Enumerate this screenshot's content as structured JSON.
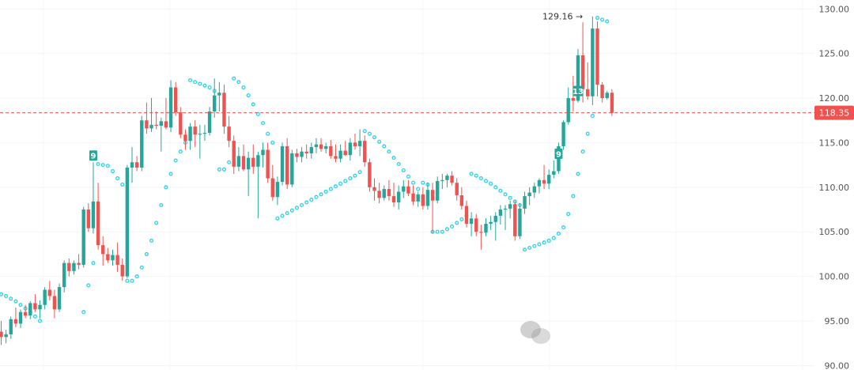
{
  "chart_data": {
    "type": "candlestick",
    "ylim": [
      89.5,
      131.0
    ],
    "y_ticks": [
      "130.00",
      "125.00",
      "120.00",
      "115.00",
      "110.00",
      "105.00",
      "100.00",
      "95.00",
      "90.00"
    ],
    "grid": true,
    "colors": {
      "up": "#26a69a",
      "down": "#ef5350",
      "sar": "#29d3e8",
      "grid": "#f0f3f7"
    },
    "current_price": {
      "value": 118.35,
      "label": "118.35",
      "color": "#ef5350"
    },
    "high_marker": {
      "value": 129.16,
      "label": "129.16 →"
    },
    "count_labels": [
      {
        "index": 19,
        "text": "9"
      },
      {
        "index": 115,
        "text": "9"
      },
      {
        "index": 119,
        "text": "13"
      }
    ],
    "candles": [
      [
        93.8,
        95.0,
        92.3,
        93.2
      ],
      [
        93.2,
        94.0,
        92.5,
        93.5
      ],
      [
        93.5,
        95.5,
        93.0,
        95.2
      ],
      [
        95.2,
        96.5,
        94.3,
        94.7
      ],
      [
        94.7,
        96.3,
        94.2,
        96.0
      ],
      [
        96.0,
        96.8,
        95.3,
        95.6
      ],
      [
        95.6,
        97.2,
        95.2,
        97.0
      ],
      [
        97.0,
        98.0,
        96.0,
        96.3
      ],
      [
        96.3,
        97.3,
        95.3,
        96.8
      ],
      [
        96.8,
        98.8,
        96.3,
        98.5
      ],
      [
        98.5,
        99.5,
        97.3,
        97.8
      ],
      [
        97.8,
        98.5,
        95.3,
        96.3
      ],
      [
        96.3,
        99.2,
        96.0,
        98.8
      ],
      [
        98.8,
        101.8,
        98.2,
        101.5
      ],
      [
        101.5,
        102.0,
        100.0,
        100.6
      ],
      [
        100.6,
        101.8,
        100.2,
        101.5
      ],
      [
        101.5,
        102.5,
        100.8,
        101.3
      ],
      [
        101.3,
        107.8,
        101.0,
        107.5
      ],
      [
        107.5,
        108.2,
        105.0,
        105.4
      ],
      [
        105.4,
        112.8,
        104.8,
        108.4
      ],
      [
        108.4,
        110.5,
        103.0,
        103.5
      ],
      [
        103.5,
        104.5,
        101.2,
        102.5
      ],
      [
        102.5,
        103.2,
        101.5,
        101.8
      ],
      [
        101.8,
        103.0,
        101.2,
        102.4
      ],
      [
        102.4,
        103.8,
        100.5,
        101.3
      ],
      [
        101.3,
        102.0,
        99.5,
        100.0
      ],
      [
        100.0,
        112.5,
        99.8,
        112.2
      ],
      [
        112.2,
        114.5,
        110.5,
        112.8
      ],
      [
        112.8,
        113.5,
        111.8,
        112.2
      ],
      [
        112.2,
        118.0,
        111.8,
        117.5
      ],
      [
        117.5,
        119.5,
        116.0,
        116.6
      ],
      [
        116.6,
        120.0,
        116.2,
        117.0
      ],
      [
        117.0,
        118.5,
        116.5,
        116.9
      ],
      [
        116.9,
        117.8,
        114.0,
        117.4
      ],
      [
        117.4,
        120.0,
        116.5,
        116.7
      ],
      [
        116.7,
        122.0,
        116.2,
        121.2
      ],
      [
        121.2,
        121.8,
        118.0,
        118.4
      ],
      [
        118.4,
        119.0,
        115.5,
        115.9
      ],
      [
        115.9,
        116.5,
        114.2,
        115.2
      ],
      [
        115.2,
        117.2,
        114.2,
        116.8
      ],
      [
        116.8,
        117.5,
        114.5,
        115.9
      ],
      [
        115.9,
        117.0,
        113.2,
        116.0
      ],
      [
        116.0,
        117.0,
        115.2,
        116.1
      ],
      [
        116.1,
        119.0,
        115.8,
        118.5
      ],
      [
        118.5,
        122.2,
        117.8,
        120.3
      ],
      [
        120.3,
        121.8,
        118.5,
        120.6
      ],
      [
        120.6,
        121.5,
        116.0,
        116.8
      ],
      [
        116.8,
        118.0,
        114.5,
        115.2
      ],
      [
        115.2,
        115.8,
        111.5,
        112.3
      ],
      [
        112.3,
        114.5,
        111.8,
        113.5
      ],
      [
        113.5,
        114.8,
        111.8,
        112.0
      ],
      [
        112.0,
        114.0,
        109.0,
        113.3
      ],
      [
        113.3,
        114.8,
        111.5,
        112.3
      ],
      [
        112.3,
        114.0,
        106.5,
        113.6
      ],
      [
        113.6,
        115.0,
        112.2,
        114.2
      ],
      [
        114.2,
        115.0,
        110.5,
        111.0
      ],
      [
        111.0,
        112.5,
        108.5,
        108.9
      ],
      [
        108.9,
        111.2,
        108.0,
        110.6
      ],
      [
        110.6,
        115.0,
        110.2,
        114.6
      ],
      [
        114.6,
        115.5,
        109.8,
        110.3
      ],
      [
        110.3,
        114.2,
        110.0,
        113.8
      ],
      [
        113.8,
        114.3,
        112.8,
        113.4
      ],
      [
        113.4,
        114.5,
        112.8,
        114.0
      ],
      [
        114.0,
        114.8,
        113.2,
        113.8
      ],
      [
        113.8,
        115.0,
        113.2,
        114.5
      ],
      [
        114.5,
        115.5,
        113.8,
        114.8
      ],
      [
        114.8,
        115.5,
        114.0,
        114.3
      ],
      [
        114.3,
        115.0,
        113.8,
        114.6
      ],
      [
        114.6,
        115.3,
        113.2,
        113.5
      ],
      [
        113.5,
        114.8,
        112.8,
        113.2
      ],
      [
        113.2,
        114.8,
        112.8,
        114.1
      ],
      [
        114.1,
        115.2,
        113.5,
        113.6
      ],
      [
        113.6,
        115.5,
        113.0,
        115.0
      ],
      [
        115.0,
        116.0,
        114.2,
        114.6
      ],
      [
        114.6,
        116.5,
        113.5,
        115.2
      ],
      [
        115.2,
        115.8,
        112.3,
        112.8
      ],
      [
        112.8,
        113.2,
        109.5,
        110.0
      ],
      [
        110.0,
        111.0,
        108.5,
        109.6
      ],
      [
        109.6,
        110.5,
        108.2,
        108.8
      ],
      [
        108.8,
        110.2,
        108.5,
        109.8
      ],
      [
        109.8,
        110.8,
        108.5,
        109.0
      ],
      [
        109.0,
        110.5,
        107.8,
        108.3
      ],
      [
        108.3,
        110.2,
        107.5,
        109.5
      ],
      [
        109.5,
        110.8,
        108.8,
        110.1
      ],
      [
        110.1,
        110.8,
        109.0,
        109.3
      ],
      [
        109.3,
        110.2,
        108.0,
        108.4
      ],
      [
        108.4,
        109.5,
        107.8,
        109.2
      ],
      [
        109.2,
        110.0,
        107.5,
        107.9
      ],
      [
        107.9,
        110.5,
        107.5,
        109.7
      ],
      [
        109.7,
        110.5,
        104.8,
        108.5
      ],
      [
        108.5,
        111.2,
        108.2,
        110.7
      ],
      [
        110.7,
        111.5,
        109.8,
        110.8
      ],
      [
        110.8,
        111.5,
        110.0,
        111.3
      ],
      [
        111.3,
        111.8,
        110.2,
        110.5
      ],
      [
        110.5,
        111.0,
        108.5,
        109.1
      ],
      [
        109.1,
        110.0,
        107.5,
        107.9
      ],
      [
        107.9,
        108.5,
        105.5,
        105.9
      ],
      [
        105.9,
        107.2,
        104.5,
        106.5
      ],
      [
        106.5,
        107.0,
        104.5,
        105.0
      ],
      [
        105.0,
        105.8,
        103.0,
        104.9
      ],
      [
        104.9,
        106.5,
        104.5,
        105.9
      ],
      [
        105.9,
        106.8,
        105.2,
        106.1
      ],
      [
        106.1,
        107.2,
        104.0,
        106.8
      ],
      [
        106.8,
        108.0,
        105.8,
        107.5
      ],
      [
        107.5,
        108.0,
        105.2,
        107.6
      ],
      [
        107.6,
        108.5,
        106.5,
        108.1
      ],
      [
        108.1,
        108.5,
        104.0,
        104.5
      ],
      [
        104.5,
        108.2,
        104.2,
        107.6
      ],
      [
        107.6,
        109.5,
        107.0,
        109.0
      ],
      [
        109.0,
        110.0,
        108.0,
        109.4
      ],
      [
        109.4,
        110.5,
        108.8,
        110.1
      ],
      [
        110.1,
        111.0,
        109.3,
        110.8
      ],
      [
        110.8,
        112.5,
        109.8,
        110.4
      ],
      [
        110.4,
        112.0,
        109.8,
        111.4
      ],
      [
        111.4,
        113.0,
        111.0,
        111.8
      ],
      [
        111.8,
        115.0,
        111.5,
        114.6
      ],
      [
        114.6,
        117.5,
        114.2,
        117.3
      ],
      [
        117.3,
        121.2,
        117.0,
        120.0
      ],
      [
        120.0,
        122.5,
        118.5,
        119.7
      ],
      [
        119.7,
        125.5,
        119.5,
        124.8
      ],
      [
        124.8,
        128.5,
        119.5,
        121.0
      ],
      [
        121.0,
        124.0,
        119.8,
        120.2
      ],
      [
        120.2,
        129.16,
        119.2,
        127.8
      ],
      [
        127.8,
        128.6,
        120.2,
        121.5
      ],
      [
        121.5,
        121.8,
        119.5,
        120.0
      ],
      [
        120.0,
        120.8,
        119.8,
        120.6
      ],
      [
        120.6,
        121.0,
        118.0,
        118.35
      ]
    ],
    "sar": [
      [
        0,
        98.0
      ],
      [
        1,
        97.8
      ],
      [
        2,
        97.5
      ],
      [
        3,
        97.2
      ],
      [
        4,
        96.8
      ],
      [
        5,
        96.4
      ],
      [
        6,
        96.0
      ],
      [
        7,
        95.5
      ],
      [
        8,
        95.0
      ],
      [
        17,
        96.0
      ],
      [
        18,
        99.0
      ],
      [
        19,
        101.5
      ],
      [
        20,
        112.6
      ],
      [
        21,
        112.5
      ],
      [
        22,
        112.4
      ],
      [
        23,
        111.8
      ],
      [
        24,
        111.0
      ],
      [
        25,
        110.3
      ],
      [
        26,
        99.5
      ],
      [
        27,
        99.5
      ],
      [
        28,
        100.0
      ],
      [
        29,
        101.0
      ],
      [
        30,
        102.5
      ],
      [
        31,
        104.0
      ],
      [
        32,
        106.0
      ],
      [
        33,
        108.0
      ],
      [
        34,
        110.0
      ],
      [
        35,
        111.5
      ],
      [
        36,
        113.0
      ],
      [
        37,
        114.0
      ],
      [
        38,
        115.0
      ],
      [
        39,
        122.0
      ],
      [
        40,
        121.8
      ],
      [
        41,
        121.6
      ],
      [
        42,
        121.4
      ],
      [
        43,
        121.2
      ],
      [
        44,
        120.8
      ],
      [
        45,
        112.0
      ],
      [
        46,
        112.0
      ],
      [
        47,
        112.8
      ],
      [
        48,
        122.2
      ],
      [
        49,
        121.8
      ],
      [
        50,
        121.2
      ],
      [
        51,
        120.3
      ],
      [
        52,
        119.3
      ],
      [
        53,
        118.2
      ],
      [
        54,
        117.2
      ],
      [
        55,
        116.0
      ],
      [
        56,
        115.0
      ],
      [
        57,
        106.5
      ],
      [
        58,
        106.8
      ],
      [
        59,
        107.1
      ],
      [
        60,
        107.4
      ],
      [
        61,
        107.7
      ],
      [
        62,
        108.0
      ],
      [
        63,
        108.3
      ],
      [
        64,
        108.6
      ],
      [
        65,
        108.9
      ],
      [
        66,
        109.2
      ],
      [
        67,
        109.5
      ],
      [
        68,
        109.8
      ],
      [
        69,
        110.1
      ],
      [
        70,
        110.4
      ],
      [
        71,
        110.7
      ],
      [
        72,
        111.0
      ],
      [
        73,
        111.3
      ],
      [
        74,
        111.7
      ],
      [
        75,
        116.3
      ],
      [
        76,
        116.0
      ],
      [
        77,
        115.6
      ],
      [
        78,
        115.1
      ],
      [
        79,
        114.6
      ],
      [
        80,
        114.0
      ],
      [
        81,
        113.3
      ],
      [
        82,
        112.6
      ],
      [
        83,
        111.9
      ],
      [
        84,
        111.2
      ],
      [
        85,
        110.5
      ],
      [
        86,
        109.8
      ],
      [
        87,
        110.5
      ],
      [
        88,
        110.3
      ],
      [
        89,
        105.0
      ],
      [
        90,
        105.0
      ],
      [
        91,
        105.0
      ],
      [
        92,
        105.3
      ],
      [
        93,
        105.6
      ],
      [
        94,
        106.0
      ],
      [
        95,
        106.4
      ],
      [
        96,
        106.8
      ],
      [
        97,
        111.5
      ],
      [
        98,
        111.3
      ],
      [
        99,
        111.0
      ],
      [
        100,
        110.7
      ],
      [
        101,
        110.4
      ],
      [
        102,
        110.0
      ],
      [
        103,
        109.6
      ],
      [
        104,
        109.2
      ],
      [
        105,
        108.8
      ],
      [
        106,
        108.4
      ],
      [
        107,
        108.0
      ],
      [
        108,
        103.0
      ],
      [
        109,
        103.2
      ],
      [
        110,
        103.4
      ],
      [
        111,
        103.6
      ],
      [
        112,
        103.8
      ],
      [
        113,
        104.0
      ],
      [
        114,
        104.3
      ],
      [
        115,
        104.8
      ],
      [
        116,
        105.5
      ],
      [
        117,
        107.0
      ],
      [
        118,
        109.0
      ],
      [
        119,
        111.5
      ],
      [
        120,
        114.0
      ],
      [
        121,
        116.0
      ],
      [
        122,
        118.0
      ],
      [
        123,
        129.0
      ],
      [
        124,
        128.8
      ],
      [
        125,
        128.6
      ]
    ]
  }
}
